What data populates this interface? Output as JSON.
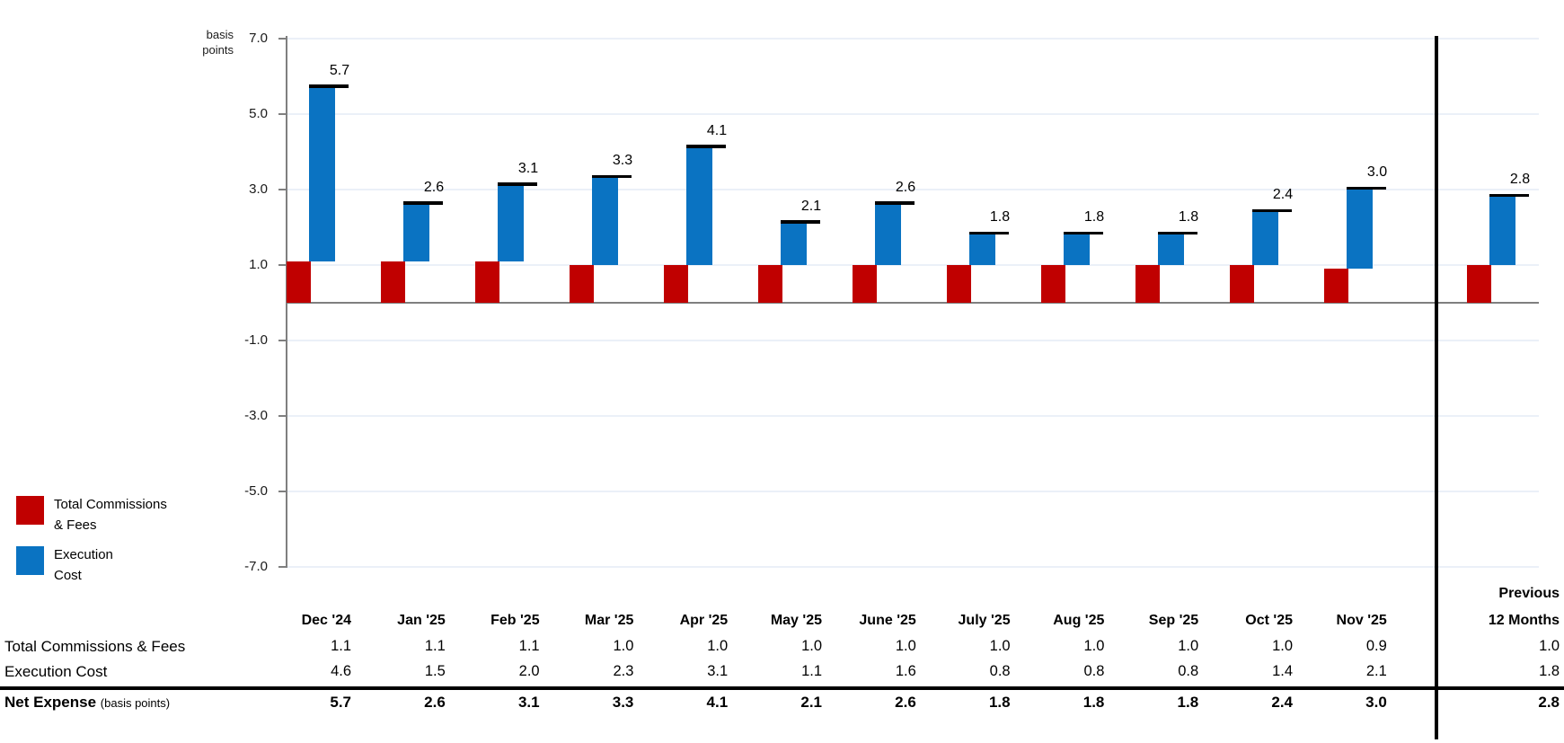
{
  "chart": {
    "unit_label_lines": [
      "basis",
      "points"
    ],
    "y_tick_labels": [
      "7.0",
      "5.0",
      "3.0",
      "1.0",
      "-1.0",
      "-3.0",
      "-5.0",
      "-7.0"
    ],
    "colors": {
      "fees": "#C00000",
      "execution": "#0A73C2",
      "cap": "#000000",
      "axis": "#7F7F7F",
      "gridline": "#EBF0F8",
      "separator": "#000000"
    },
    "legend": [
      {
        "name": "fees",
        "color": "#C00000",
        "label_lines": [
          "Total Commissions",
          "& Fees"
        ]
      },
      {
        "name": "execution",
        "color": "#0A73C2",
        "label_lines": [
          "Execution",
          "Cost"
        ]
      }
    ]
  },
  "chart_data": {
    "type": "bar",
    "stacked": true,
    "title": "",
    "ylabel": "basis points",
    "xlabel": "",
    "ylim": [
      -7.0,
      7.0
    ],
    "y_tick_step": 2.0,
    "grid": true,
    "legend_position": "bottom-left",
    "bar_total_labels": true,
    "categories": [
      "Dec '24",
      "Jan '25",
      "Feb '25",
      "Mar '25",
      "Apr '25",
      "May '25",
      "June '25",
      "July '25",
      "Aug '25",
      "Sep '25",
      "Oct '25",
      "Nov '25",
      "Previous 12 Months"
    ],
    "series": [
      {
        "name": "Total Commissions & Fees",
        "color": "#C00000",
        "values": [
          1.1,
          1.1,
          1.1,
          1.0,
          1.0,
          1.0,
          1.0,
          1.0,
          1.0,
          1.0,
          1.0,
          0.9,
          1.0
        ]
      },
      {
        "name": "Execution Cost",
        "color": "#0A73C2",
        "values": [
          4.6,
          1.5,
          2.0,
          2.3,
          3.1,
          1.1,
          1.6,
          0.8,
          0.8,
          0.8,
          1.4,
          2.1,
          1.8
        ]
      }
    ],
    "totals": {
      "name": "Net Expense",
      "unit": "basis points",
      "values": [
        5.7,
        2.6,
        3.1,
        3.3,
        4.1,
        2.1,
        2.6,
        1.8,
        1.8,
        1.8,
        2.4,
        3.0,
        2.8
      ]
    }
  },
  "table": {
    "last_col_header_lines": [
      "Previous",
      "12 Months"
    ],
    "row_labels": [
      "Total Commissions & Fees",
      "Execution Cost"
    ],
    "total_row_label": "Net Expense",
    "total_row_label_suffix": "(basis points)"
  }
}
